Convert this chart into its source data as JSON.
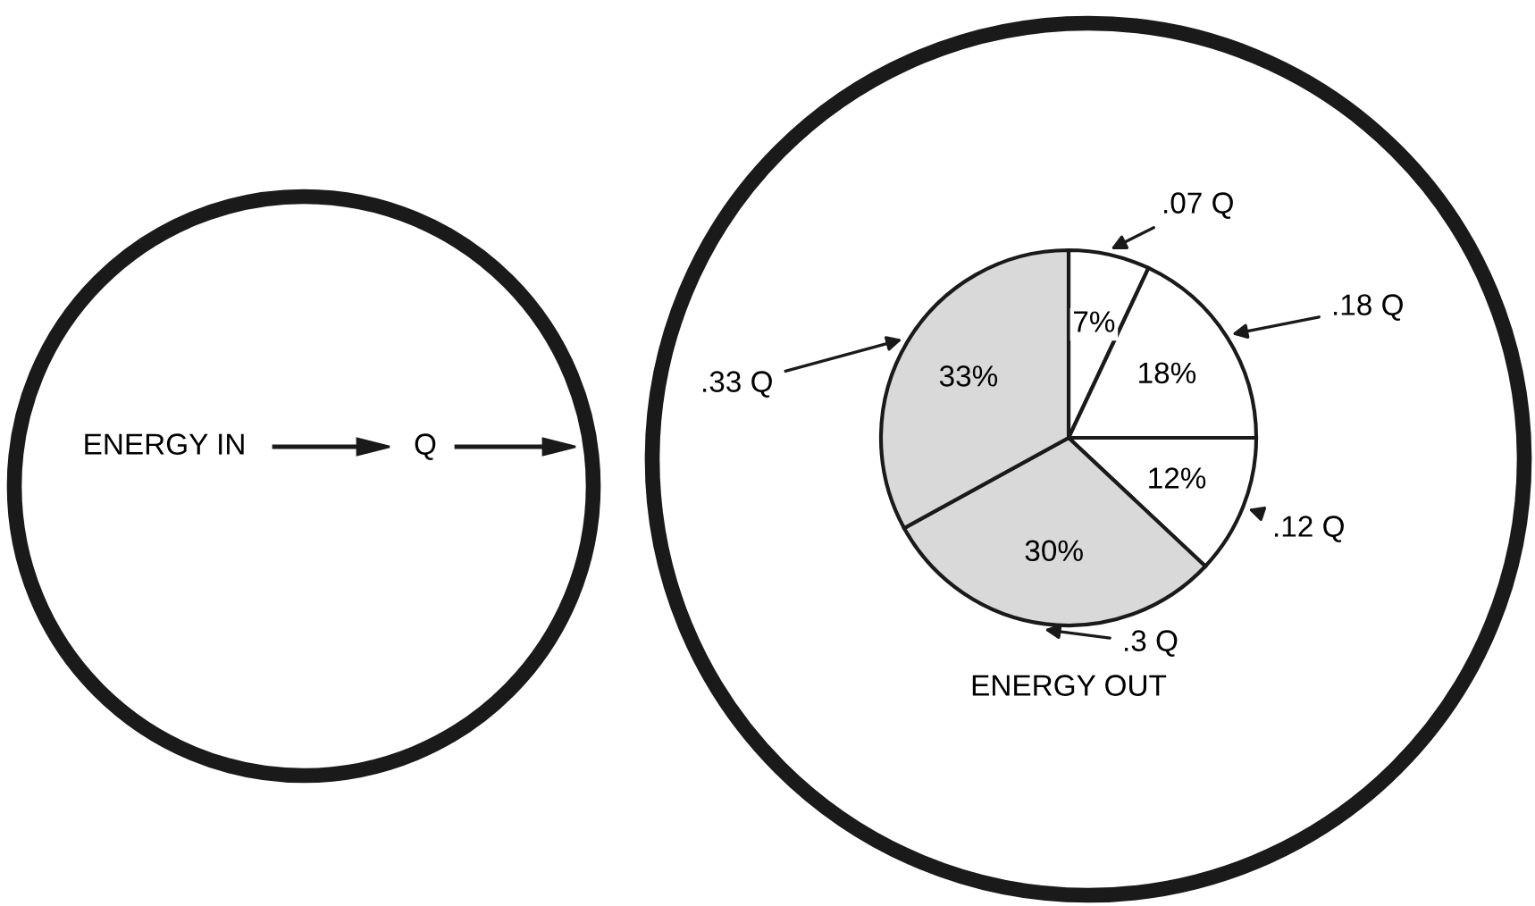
{
  "chart_data": {
    "type": "pie",
    "categories": [
      ".07 Q",
      ".18 Q",
      ".12 Q",
      ".3 Q",
      ".33 Q"
    ],
    "values": [
      7,
      18,
      12,
      30,
      33
    ],
    "value_labels": [
      "7%",
      "18%",
      "12%",
      "30%",
      "33%"
    ],
    "colors": [
      "#ffffff",
      "#ffffff",
      "#ffffff",
      "#d9d9d9",
      "#d9d9d9"
    ],
    "annotations": [
      "ENERGY IN",
      "Q",
      "ENERGY OUT"
    ]
  }
}
